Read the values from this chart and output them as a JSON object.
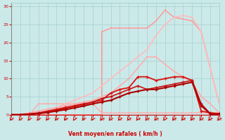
{
  "xlabel": "Vent moyen/en rafales ( km/h )",
  "xlim": [
    0,
    23
  ],
  "ylim": [
    0,
    31
  ],
  "yticks": [
    0,
    5,
    10,
    15,
    20,
    25,
    30
  ],
  "xticks": [
    0,
    1,
    2,
    3,
    4,
    5,
    6,
    7,
    8,
    9,
    10,
    11,
    12,
    13,
    14,
    15,
    16,
    17,
    18,
    19,
    20,
    21,
    22,
    23
  ],
  "bg_color": "#cce9e9",
  "grid_color": "#aad4d4",
  "arrow_color": "#cc0000",
  "figsize": [
    3.2,
    2.0
  ],
  "dpi": 100,
  "line_step_pink": {
    "x": [
      0,
      1,
      2,
      3,
      4,
      5,
      6,
      7,
      8,
      9,
      10,
      10,
      11,
      12,
      13,
      14,
      15,
      16,
      17,
      18,
      19,
      20,
      21,
      22,
      23
    ],
    "y": [
      0,
      0,
      0,
      0,
      0,
      0,
      0,
      0,
      0,
      0,
      0,
      23,
      24,
      24,
      24,
      24,
      24,
      26,
      29,
      27,
      26.5,
      26,
      23,
      13,
      3
    ],
    "color": "#ff9999",
    "lw": 1.1
  },
  "line_pink_flat": {
    "x": [
      0,
      1,
      2,
      3,
      4,
      5,
      6,
      7,
      8,
      9,
      10,
      11,
      12,
      13,
      14,
      15,
      16,
      17,
      18,
      19,
      20,
      21,
      22,
      23
    ],
    "y": [
      0,
      0,
      0,
      3,
      3,
      3,
      3,
      3,
      3,
      3,
      0.5,
      0.5,
      0.5,
      0.5,
      0.5,
      0.5,
      0.5,
      0.5,
      0.5,
      0.5,
      0.5,
      0.5,
      0.5,
      0.5
    ],
    "color": "#ffaaaa",
    "lw": 1.0
  },
  "line_pink_diagonal": {
    "x": [
      0,
      1,
      2,
      3,
      4,
      5,
      6,
      7,
      8,
      9,
      10,
      11,
      12,
      13,
      14,
      15,
      16,
      17,
      18,
      19,
      20,
      21,
      22,
      23
    ],
    "y": [
      0,
      0,
      0.5,
      1,
      1.5,
      2,
      3,
      4,
      5,
      6,
      8,
      10,
      12,
      14,
      16,
      18,
      22,
      25,
      27,
      27.5,
      27,
      23,
      13,
      3
    ],
    "color": "#ffbbbb",
    "lw": 1.2
  },
  "line_pink_mid": {
    "x": [
      0,
      1,
      2,
      3,
      4,
      5,
      6,
      7,
      8,
      9,
      10,
      11,
      12,
      13,
      14,
      15,
      16,
      17,
      18,
      19,
      20,
      21,
      22,
      23
    ],
    "y": [
      0,
      0,
      0.5,
      1,
      1.5,
      2,
      2.5,
      3,
      3.5,
      4,
      5,
      6,
      8,
      10,
      13,
      16,
      16,
      14,
      12,
      10.5,
      9,
      5,
      3,
      0.5
    ],
    "color": "#ffaaaa",
    "lw": 1.1
  },
  "line_red1": {
    "x": [
      0,
      1,
      2,
      3,
      4,
      5,
      6,
      7,
      8,
      9,
      10,
      11,
      12,
      13,
      14,
      15,
      16,
      17,
      18,
      19,
      20,
      21,
      22,
      23
    ],
    "y": [
      0,
      0,
      0.2,
      0.5,
      1,
      1.5,
      2,
      2.5,
      3,
      3.5,
      4,
      6,
      7,
      7.5,
      10.5,
      10.5,
      9.5,
      10,
      10.5,
      10.5,
      9.5,
      1,
      0.5,
      0.3
    ],
    "color": "#dd1111",
    "lw": 1.3
  },
  "line_red2": {
    "x": [
      0,
      1,
      2,
      3,
      4,
      5,
      6,
      7,
      8,
      9,
      10,
      11,
      12,
      13,
      14,
      15,
      16,
      17,
      18,
      19,
      20,
      21,
      22,
      23
    ],
    "y": [
      0,
      0,
      0.2,
      0.4,
      0.8,
      1.2,
      1.8,
      2.3,
      2.8,
      3.5,
      4.5,
      5,
      6,
      7,
      8,
      7,
      7.5,
      8,
      8.5,
      9,
      9.5,
      3,
      0.3,
      0.2
    ],
    "color": "#cc1111",
    "lw": 1.2
  },
  "line_red3": {
    "x": [
      0,
      1,
      2,
      3,
      4,
      5,
      6,
      7,
      8,
      9,
      10,
      11,
      12,
      13,
      14,
      15,
      16,
      17,
      18,
      19,
      20,
      21,
      22,
      23
    ],
    "y": [
      0,
      0,
      0.1,
      0.3,
      0.6,
      1,
      1.4,
      1.9,
      2.4,
      3,
      3.5,
      4,
      5,
      6,
      6.5,
      7,
      7,
      7.5,
      8,
      8.5,
      9,
      2.5,
      0.2,
      0.1
    ],
    "color": "#aa0000",
    "lw": 1.5
  }
}
